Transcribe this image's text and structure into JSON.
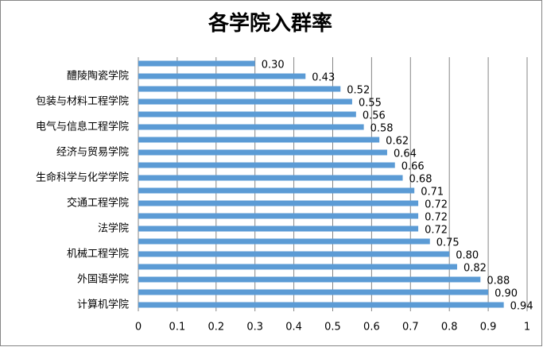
{
  "chart_data": {
    "type": "bar",
    "orientation": "horizontal",
    "title": "各学院入群率",
    "categories": [
      null,
      "醴陵陶瓷学院",
      null,
      "包装与材料工程学院",
      null,
      "电气与信息工程学院",
      null,
      "经济与贸易学院",
      null,
      "生命科学与化学学院",
      null,
      "交通工程学院",
      null,
      "法学院",
      null,
      "机械工程学院",
      null,
      "外国语学院",
      null,
      "计算机学院"
    ],
    "values": [
      0.3,
      0.43,
      0.52,
      0.55,
      0.56,
      0.58,
      0.62,
      0.64,
      0.66,
      0.68,
      0.71,
      0.72,
      0.72,
      0.72,
      0.75,
      0.8,
      0.82,
      0.88,
      0.9,
      0.94
    ],
    "value_labels": [
      "0.30",
      "0.43",
      "0.52",
      "0.55",
      "0.56",
      "0.58",
      "0.62",
      "0.64",
      "0.66",
      "0.68",
      "0.71",
      "0.72",
      "0.72",
      "0.72",
      "0.75",
      "0.80",
      "0.82",
      "0.88",
      "0.90",
      "0.94"
    ],
    "color": "#5b9bd5",
    "xlim": [
      0,
      1
    ],
    "xticks": [
      0,
      0.1,
      0.2,
      0.3,
      0.4,
      0.5,
      0.6,
      0.7,
      0.8,
      0.9,
      1
    ],
    "grid": true
  }
}
